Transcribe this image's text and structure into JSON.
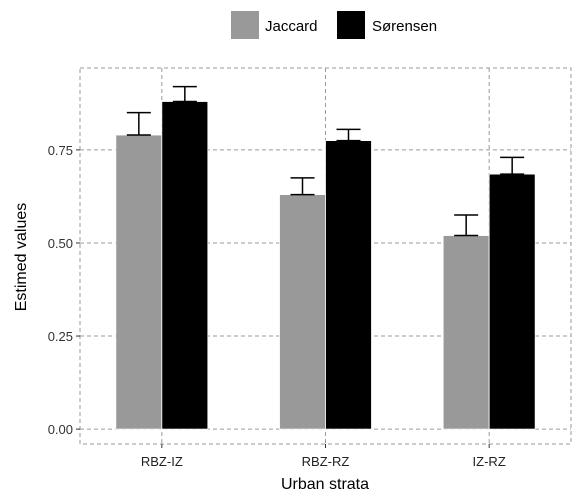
{
  "chart_data": {
    "type": "bar",
    "xlabel": "Urban strata",
    "ylabel": "Estimed values",
    "categories": [
      "RBZ-IZ",
      "RBZ-RZ",
      "IZ-RZ"
    ],
    "ylim": [
      -0.04,
      0.97
    ],
    "yticks": [
      0.0,
      0.25,
      0.5,
      0.75
    ],
    "ytick_labels": [
      "0.00",
      "0.25",
      "0.50",
      "0.75"
    ],
    "grid": true,
    "legend_position": "top",
    "series": [
      {
        "name": "Jaccard",
        "color": "#999999",
        "values": [
          0.79,
          0.63,
          0.52
        ],
        "error_upper": [
          0.85,
          0.675,
          0.575
        ],
        "error_lower": [
          0.79,
          0.63,
          0.52
        ]
      },
      {
        "name": "Sørensen",
        "color": "#000000",
        "values": [
          0.88,
          0.775,
          0.685
        ],
        "error_upper": [
          0.92,
          0.805,
          0.73
        ],
        "error_lower": [
          0.88,
          0.775,
          0.685
        ]
      }
    ]
  }
}
